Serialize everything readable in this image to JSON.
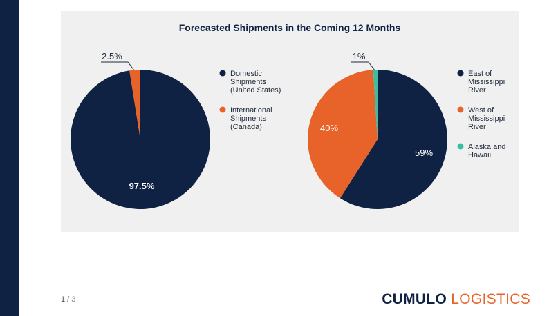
{
  "colors": {
    "sidebar": "#0f2244",
    "navy": "#0f2244",
    "orange": "#e8632a",
    "teal": "#3cbf9f",
    "panel": "#f0f0f0"
  },
  "chart_title": "Forecasted Shipments in the Coming 12 Months",
  "chart_data": [
    {
      "type": "pie",
      "title": "",
      "slices": [
        {
          "label": "Domestic Shipments (United States)",
          "legend_lines": [
            "Domestic",
            "Shipments",
            "(United States)"
          ],
          "value": 97.5,
          "data_label": "97.5%",
          "color": "#0f2244"
        },
        {
          "label": "International Shipments (Canada)",
          "legend_lines": [
            "International",
            "Shipments",
            "(Canada)"
          ],
          "value": 2.5,
          "data_label": "2.5%",
          "color": "#e8632a"
        }
      ],
      "legend_position": "right"
    },
    {
      "type": "pie",
      "title": "",
      "slices": [
        {
          "label": "East of Mississippi River",
          "legend_lines": [
            "East of",
            "Mississippi",
            "River"
          ],
          "value": 59,
          "data_label": "59%",
          "color": "#0f2244"
        },
        {
          "label": "West of Mississippi River",
          "legend_lines": [
            "West of",
            "Mississippi",
            "River"
          ],
          "value": 40,
          "data_label": "40%",
          "color": "#e8632a"
        },
        {
          "label": "Alaska and Hawaii",
          "legend_lines": [
            "Alaska and",
            "Hawaii"
          ],
          "value": 1,
          "data_label": "1%",
          "color": "#3cbf9f"
        }
      ],
      "legend_position": "right"
    }
  ],
  "pagination": {
    "current": "1",
    "separator": " / ",
    "total": "3"
  },
  "brand": {
    "bold": "CUMULO",
    "light": " LOGISTICS"
  }
}
